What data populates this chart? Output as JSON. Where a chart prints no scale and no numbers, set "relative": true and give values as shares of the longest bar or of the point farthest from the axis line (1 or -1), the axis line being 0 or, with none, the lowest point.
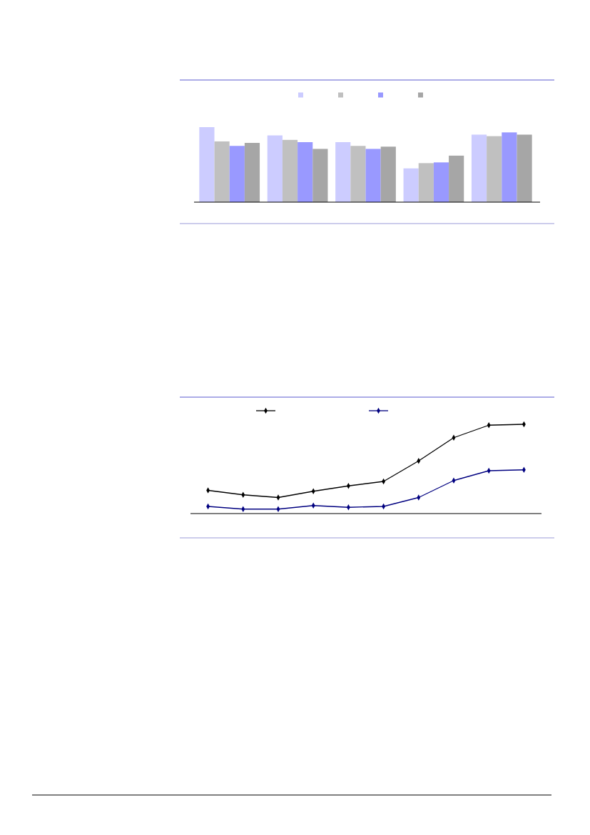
{
  "chart_data": [
    {
      "type": "bar",
      "categories": [
        null,
        null,
        null,
        null,
        null
      ],
      "relative": true,
      "series": [
        {
          "color": "#ccccff",
          "values": [
            1,
            0.89,
            0.8,
            0.45,
            0.9
          ]
        },
        {
          "color": "#c0c0c0",
          "values": [
            0.81,
            0.83,
            0.75,
            0.52,
            0.88
          ]
        },
        {
          "color": "#9999ff",
          "values": [
            0.75,
            0.8,
            0.71,
            0.53,
            0.93
          ]
        },
        {
          "color": "#a6a6a6",
          "values": [
            0.79,
            0.71,
            0.74,
            0.62,
            0.9
          ]
        }
      ]
    },
    {
      "type": "line",
      "categories": [
        null,
        null,
        null,
        null,
        null,
        null,
        null,
        null,
        null,
        null
      ],
      "relative": true,
      "marker": "diamond",
      "series": [
        {
          "color": "#000000",
          "values": [
            0.26,
            0.21,
            0.18,
            0.25,
            0.31,
            0.36,
            0.59,
            0.85,
            0.99,
            1
          ]
        },
        {
          "color": "#000080",
          "values": [
            0.08,
            0.05,
            0.05,
            0.09,
            0.07,
            0.08,
            0.18,
            0.37,
            0.48,
            0.49
          ]
        }
      ]
    }
  ]
}
